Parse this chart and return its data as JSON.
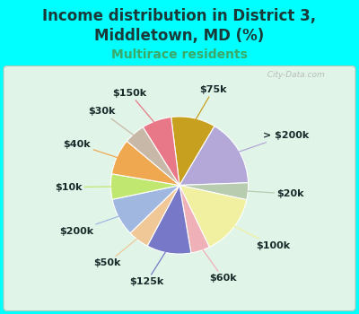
{
  "title": "Income distribution in District 3,\nMiddletown, MD (%)",
  "subtitle": "Multirace residents",
  "title_color": "#1a3a3a",
  "subtitle_color": "#3aaa6a",
  "background_color": "#00ffff",
  "chart_bg_top": "#f0f8f0",
  "chart_bg_bottom": "#d8f0e0",
  "watermark": "  City-Data.com",
  "labels": [
    "$75k",
    "> $200k",
    "$20k",
    "$100k",
    "$60k",
    "$125k",
    "$50k",
    "$200k",
    "$10k",
    "$40k",
    "$30k",
    "$150k"
  ],
  "values": [
    10.5,
    16.0,
    4.0,
    14.5,
    4.5,
    10.5,
    5.0,
    9.0,
    6.0,
    8.5,
    5.0,
    7.0
  ],
  "colors": [
    "#c8a020",
    "#b3a8d8",
    "#b8ccb0",
    "#f0f0a0",
    "#f0b0b8",
    "#7878c8",
    "#f0c898",
    "#a0b8e0",
    "#c0e870",
    "#f0a850",
    "#c8b8a8",
    "#e87888"
  ],
  "line_colors": [
    "#c8a020",
    "#b3a8d8",
    "#b8ccb0",
    "#f0f0a0",
    "#f0b0b8",
    "#7878c8",
    "#f0c898",
    "#a0b8e0",
    "#c0e870",
    "#f0a850",
    "#c8b8a8",
    "#e87888"
  ],
  "startangle": 97,
  "label_fontsize": 8,
  "title_fontsize": 12,
  "subtitle_fontsize": 10,
  "figsize": [
    4.0,
    3.5
  ],
  "dpi": 100
}
